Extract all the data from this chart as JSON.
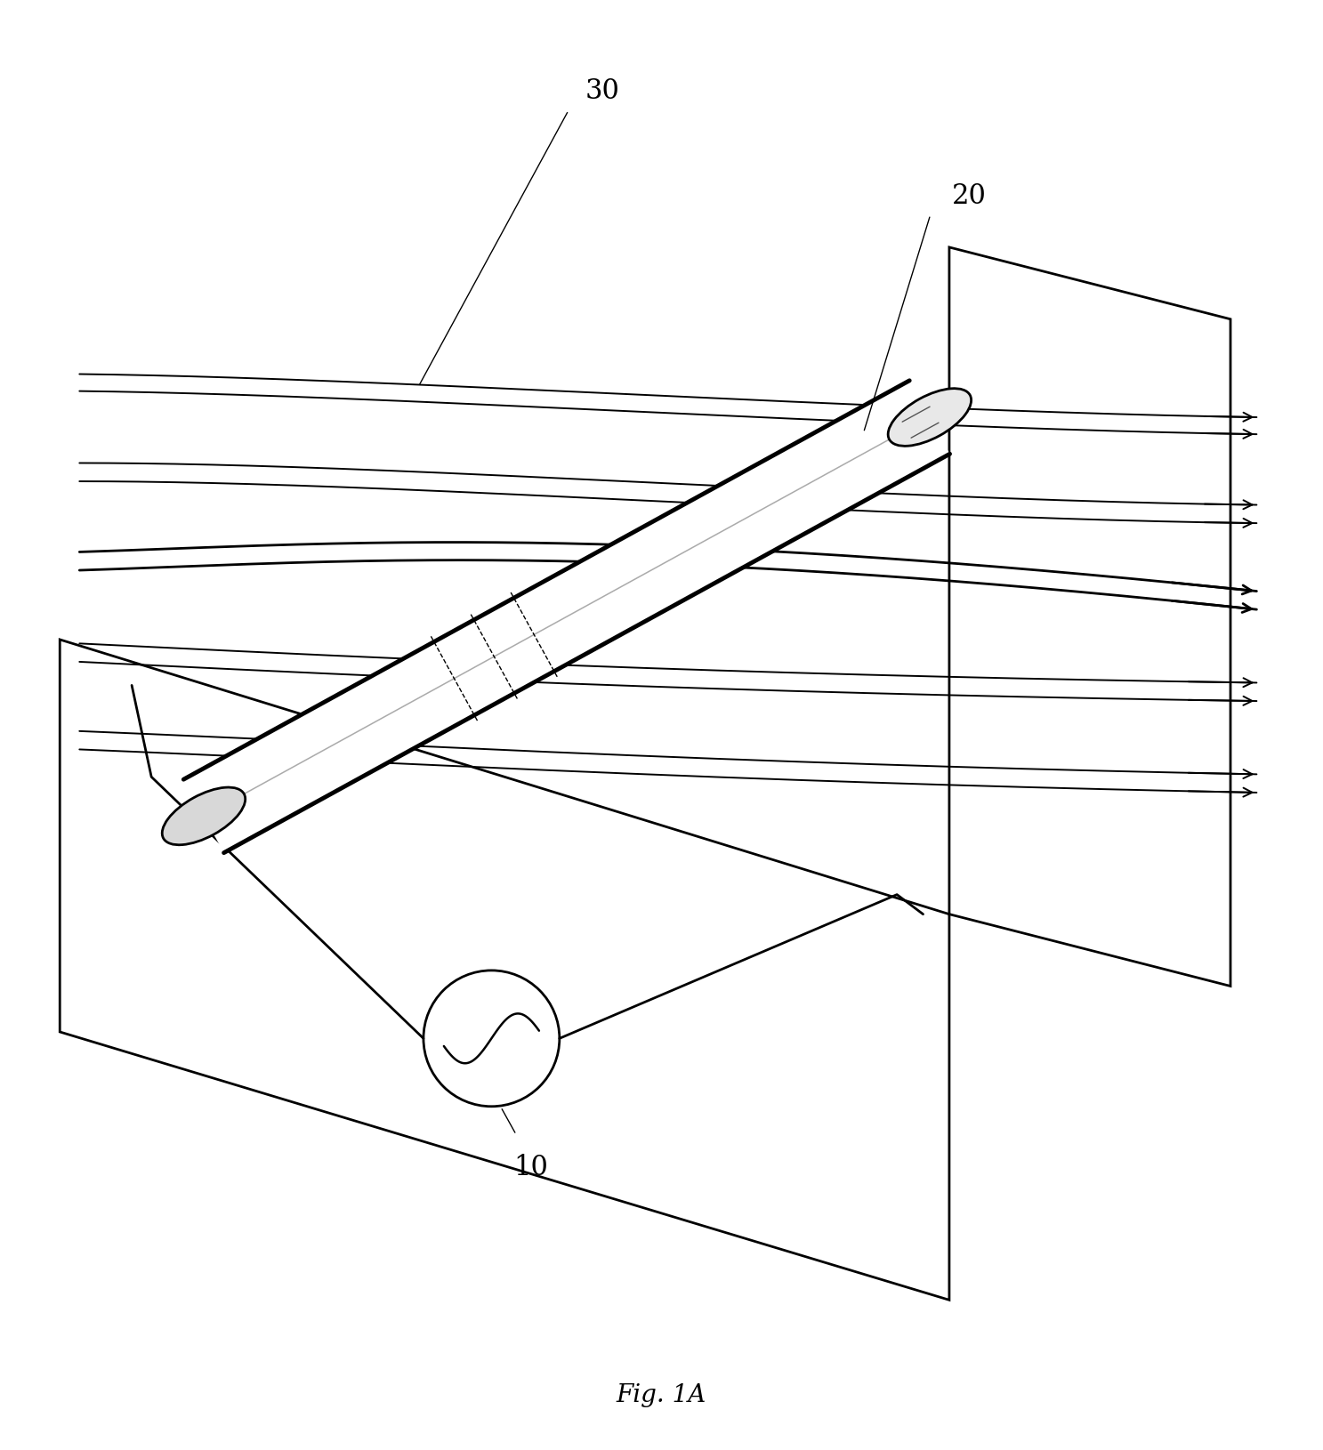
{
  "background_color": "#ffffff",
  "lc": "#000000",
  "fig_label": "Fig. 1A",
  "lw0": 0.9,
  "lw1": 1.4,
  "lw2": 2.0,
  "lw3": 2.8,
  "lw4": 3.5,
  "fig_width": 14.87,
  "fig_height": 16.31,
  "dpi": 100,
  "label_fontsize": 22,
  "caption_fontsize": 20
}
